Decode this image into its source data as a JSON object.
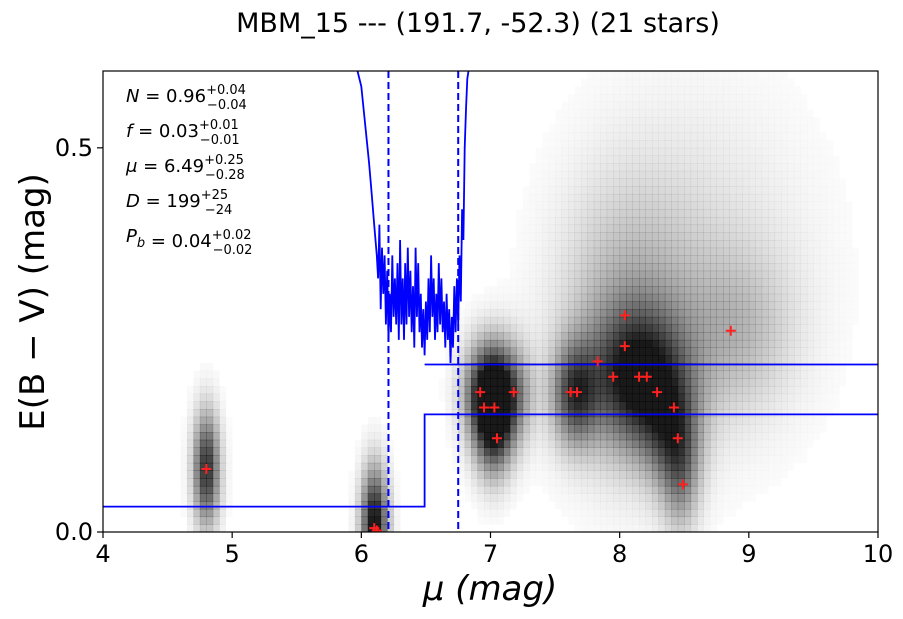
{
  "chart_data": {
    "type": "scatter",
    "title": "MBM_15 --- (191.7, -52.3) (21 stars)",
    "xlabel": "μ (mag)",
    "ylabel": "E(B − V) (mag)",
    "xlim": [
      4,
      10
    ],
    "ylim": [
      0,
      0.6
    ],
    "xticks": [
      4,
      5,
      6,
      7,
      8,
      9,
      10
    ],
    "yticks": [
      0.0,
      0.5
    ],
    "ytick_labels": [
      "0.0",
      "0.5"
    ],
    "grid": false,
    "colors": {
      "stars": "#ff2020",
      "curves": "#0000ff",
      "axes": "#000000",
      "density": "#000000"
    },
    "annotations": [
      {
        "symbol": "N",
        "value": "0.96",
        "plus": "+0.04",
        "minus": "−0.04"
      },
      {
        "symbol": "f",
        "value": "0.03",
        "plus": "+0.01",
        "minus": "−0.01"
      },
      {
        "symbol": "μ",
        "value": "6.49",
        "plus": "+0.25",
        "minus": "−0.28"
      },
      {
        "symbol": "D",
        "value": "199",
        "plus": "+25",
        "minus": "−24"
      },
      {
        "symbol": "P",
        "symbol_sub": "b",
        "value": "0.04",
        "plus": "+0.02",
        "minus": "−0.02"
      }
    ],
    "vlines": [
      6.21,
      6.75
    ],
    "stars": [
      {
        "x": 4.8,
        "y": 0.082
      },
      {
        "x": 6.1,
        "y": 0.005
      },
      {
        "x": 6.92,
        "y": 0.182
      },
      {
        "x": 6.95,
        "y": 0.162
      },
      {
        "x": 7.03,
        "y": 0.162
      },
      {
        "x": 7.05,
        "y": 0.122
      },
      {
        "x": 7.18,
        "y": 0.182
      },
      {
        "x": 7.62,
        "y": 0.182
      },
      {
        "x": 7.67,
        "y": 0.182
      },
      {
        "x": 7.83,
        "y": 0.222
      },
      {
        "x": 7.95,
        "y": 0.202
      },
      {
        "x": 8.04,
        "y": 0.282
      },
      {
        "x": 8.04,
        "y": 0.242
      },
      {
        "x": 8.15,
        "y": 0.202
      },
      {
        "x": 8.21,
        "y": 0.202
      },
      {
        "x": 8.29,
        "y": 0.182
      },
      {
        "x": 8.42,
        "y": 0.162
      },
      {
        "x": 8.45,
        "y": 0.122
      },
      {
        "x": 8.49,
        "y": 0.062
      },
      {
        "x": 8.86,
        "y": 0.262
      },
      {
        "x": 6.12,
        "y": 0.002
      }
    ],
    "step_lower": [
      [
        4,
        0.033
      ],
      [
        6.49,
        0.033
      ],
      [
        6.49,
        0.153
      ],
      [
        10,
        0.153
      ]
    ],
    "step_upper": [
      [
        6.49,
        0.218
      ],
      [
        10,
        0.218
      ]
    ],
    "density_blobs": [
      {
        "x": 4.8,
        "y": 0.082,
        "sx": 0.07,
        "sy": 0.05,
        "w": 0.8
      },
      {
        "x": 6.1,
        "y": 0.01,
        "sx": 0.07,
        "sy": 0.05,
        "w": 0.95
      },
      {
        "x": 7.02,
        "y": 0.15,
        "sx": 0.1,
        "sy": 0.05,
        "w": 0.85
      },
      {
        "x": 6.95,
        "y": 0.182,
        "sx": 0.12,
        "sy": 0.045,
        "w": 0.6
      },
      {
        "x": 7.15,
        "y": 0.18,
        "sx": 0.12,
        "sy": 0.045,
        "w": 0.5
      },
      {
        "x": 7.65,
        "y": 0.18,
        "sx": 0.12,
        "sy": 0.045,
        "w": 0.65
      },
      {
        "x": 8.15,
        "y": 0.2,
        "sx": 0.25,
        "sy": 0.06,
        "w": 0.8
      },
      {
        "x": 8.05,
        "y": 0.27,
        "sx": 0.35,
        "sy": 0.12,
        "w": 0.25
      },
      {
        "x": 8.4,
        "y": 0.13,
        "sx": 0.15,
        "sy": 0.05,
        "w": 0.45
      },
      {
        "x": 8.47,
        "y": 0.07,
        "sx": 0.1,
        "sy": 0.05,
        "w": 0.35
      },
      {
        "x": 8.6,
        "y": 0.34,
        "sx": 0.6,
        "sy": 0.15,
        "w": 0.12
      },
      {
        "x": 8.9,
        "y": 0.26,
        "sx": 0.3,
        "sy": 0.07,
        "w": 0.2
      }
    ],
    "likelihood_curve": [
      [
        5.97,
        0.6
      ],
      [
        6.0,
        0.58
      ],
      [
        6.03,
        0.53
      ],
      [
        6.06,
        0.48
      ],
      [
        6.08,
        0.44
      ],
      [
        6.1,
        0.4
      ],
      [
        6.12,
        0.36
      ],
      [
        6.13,
        0.33
      ],
      [
        6.14,
        0.4
      ],
      [
        6.15,
        0.29
      ],
      [
        6.16,
        0.37
      ],
      [
        6.17,
        0.31
      ],
      [
        6.18,
        0.36
      ],
      [
        6.19,
        0.27
      ],
      [
        6.2,
        0.34
      ],
      [
        6.21,
        0.25
      ],
      [
        6.22,
        0.31
      ],
      [
        6.23,
        0.26
      ],
      [
        6.24,
        0.36
      ],
      [
        6.25,
        0.28
      ],
      [
        6.26,
        0.33
      ],
      [
        6.27,
        0.27
      ],
      [
        6.28,
        0.35
      ],
      [
        6.29,
        0.25
      ],
      [
        6.3,
        0.38
      ],
      [
        6.31,
        0.27
      ],
      [
        6.32,
        0.33
      ],
      [
        6.33,
        0.25
      ],
      [
        6.34,
        0.35
      ],
      [
        6.35,
        0.27
      ],
      [
        6.36,
        0.37
      ],
      [
        6.37,
        0.28
      ],
      [
        6.38,
        0.34
      ],
      [
        6.39,
        0.26
      ],
      [
        6.4,
        0.32
      ],
      [
        6.41,
        0.24
      ],
      [
        6.42,
        0.37
      ],
      [
        6.43,
        0.28
      ],
      [
        6.44,
        0.35
      ],
      [
        6.45,
        0.26
      ],
      [
        6.46,
        0.31
      ],
      [
        6.47,
        0.24
      ],
      [
        6.48,
        0.29
      ],
      [
        6.49,
        0.23
      ],
      [
        6.5,
        0.3
      ],
      [
        6.51,
        0.25
      ],
      [
        6.52,
        0.33
      ],
      [
        6.53,
        0.26
      ],
      [
        6.54,
        0.36
      ],
      [
        6.55,
        0.28
      ],
      [
        6.56,
        0.33
      ],
      [
        6.57,
        0.25
      ],
      [
        6.58,
        0.31
      ],
      [
        6.59,
        0.26
      ],
      [
        6.6,
        0.35
      ],
      [
        6.61,
        0.27
      ],
      [
        6.62,
        0.33
      ],
      [
        6.63,
        0.26
      ],
      [
        6.64,
        0.3
      ],
      [
        6.65,
        0.24
      ],
      [
        6.66,
        0.31
      ],
      [
        6.67,
        0.25
      ],
      [
        6.68,
        0.29
      ],
      [
        6.69,
        0.22
      ],
      [
        6.7,
        0.28
      ],
      [
        6.71,
        0.24
      ],
      [
        6.72,
        0.32
      ],
      [
        6.73,
        0.26
      ],
      [
        6.74,
        0.33
      ],
      [
        6.75,
        0.27
      ],
      [
        6.76,
        0.36
      ],
      [
        6.77,
        0.3
      ],
      [
        6.78,
        0.42
      ],
      [
        6.79,
        0.38
      ],
      [
        6.8,
        0.5
      ],
      [
        6.81,
        0.55
      ],
      [
        6.82,
        0.59
      ],
      [
        6.83,
        0.6
      ]
    ]
  }
}
